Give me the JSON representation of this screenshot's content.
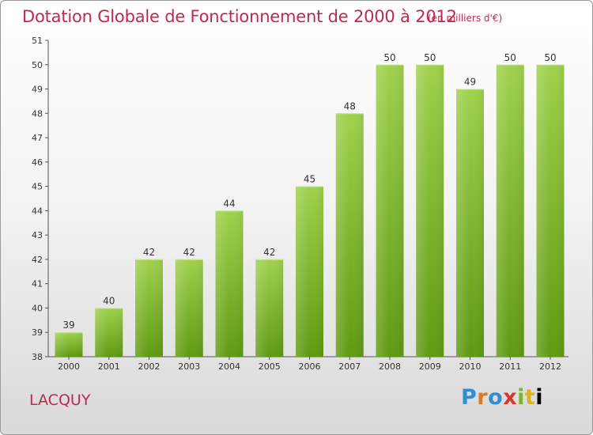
{
  "title": "Dotation Globale de Fonctionnement de 2000 à 2012",
  "subtitle": "(en milliers d'€)",
  "place": "LACQUY",
  "logo": {
    "text": "Proxiti",
    "letters": [
      "P",
      "r",
      "o",
      "x",
      "i",
      "t",
      "i"
    ]
  },
  "colors": {
    "title": "#c0294e",
    "bar_top": "#9fd14d",
    "bar_bottom": "#5f9a12",
    "axis": "#555555"
  },
  "chart_data": {
    "type": "bar",
    "categories": [
      "2000",
      "2001",
      "2002",
      "2003",
      "2004",
      "2005",
      "2006",
      "2007",
      "2008",
      "2009",
      "2010",
      "2011",
      "2012"
    ],
    "values": [
      39,
      40,
      42,
      42,
      44,
      42,
      45,
      48,
      50,
      50,
      49,
      50,
      50
    ],
    "ylim": [
      38,
      51
    ],
    "yticks": [
      38,
      39,
      40,
      41,
      42,
      43,
      44,
      45,
      46,
      47,
      48,
      49,
      50,
      51
    ],
    "grid": false,
    "data_labels": true
  }
}
